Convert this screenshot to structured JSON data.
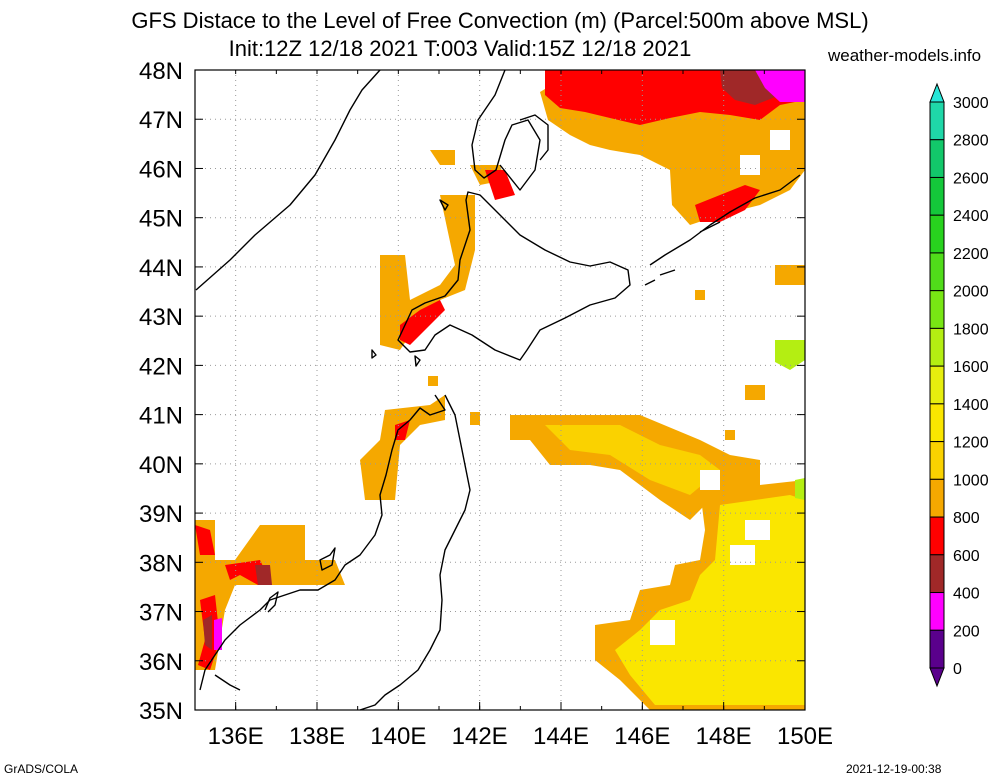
{
  "header": {
    "title_line1": "GFS Distace to the Level of Free Convection (m) (Parcel:500m above MSL)",
    "title_line2": "Init:12Z 12/18 2021 T:003 Valid:15Z 12/18 2021",
    "site": "weather-models.info"
  },
  "footer": {
    "left": "GrADS/COLA",
    "right": "2021-12-19-00:38"
  },
  "map": {
    "lon_labels": [
      "136E",
      "138E",
      "140E",
      "142E",
      "144E",
      "146E",
      "148E",
      "150E"
    ],
    "lat_labels": [
      "48N",
      "47N",
      "46N",
      "45N",
      "44N",
      "43N",
      "42N",
      "41N",
      "40N",
      "39N",
      "38N",
      "37N",
      "36N",
      "35N"
    ],
    "colors": {
      "frame": "#000000",
      "grid": "#9a9a9a",
      "coast": "#000000"
    }
  },
  "colorbar": {
    "labels": [
      "3000",
      "2800",
      "2600",
      "2400",
      "2200",
      "2000",
      "1800",
      "1600",
      "1400",
      "1200",
      "1000",
      "800",
      "600",
      "400",
      "200",
      "0"
    ],
    "colors": [
      "#27e6d8",
      "#1fd7a8",
      "#12c86a",
      "#14c83a",
      "#28d21e",
      "#50dc1a",
      "#78e614",
      "#b4ee12",
      "#e6ee0e",
      "#fae600",
      "#fad200",
      "#f5a800",
      "#ff0000",
      "#a02828",
      "#ff00ff",
      "#5a008c"
    ]
  }
}
